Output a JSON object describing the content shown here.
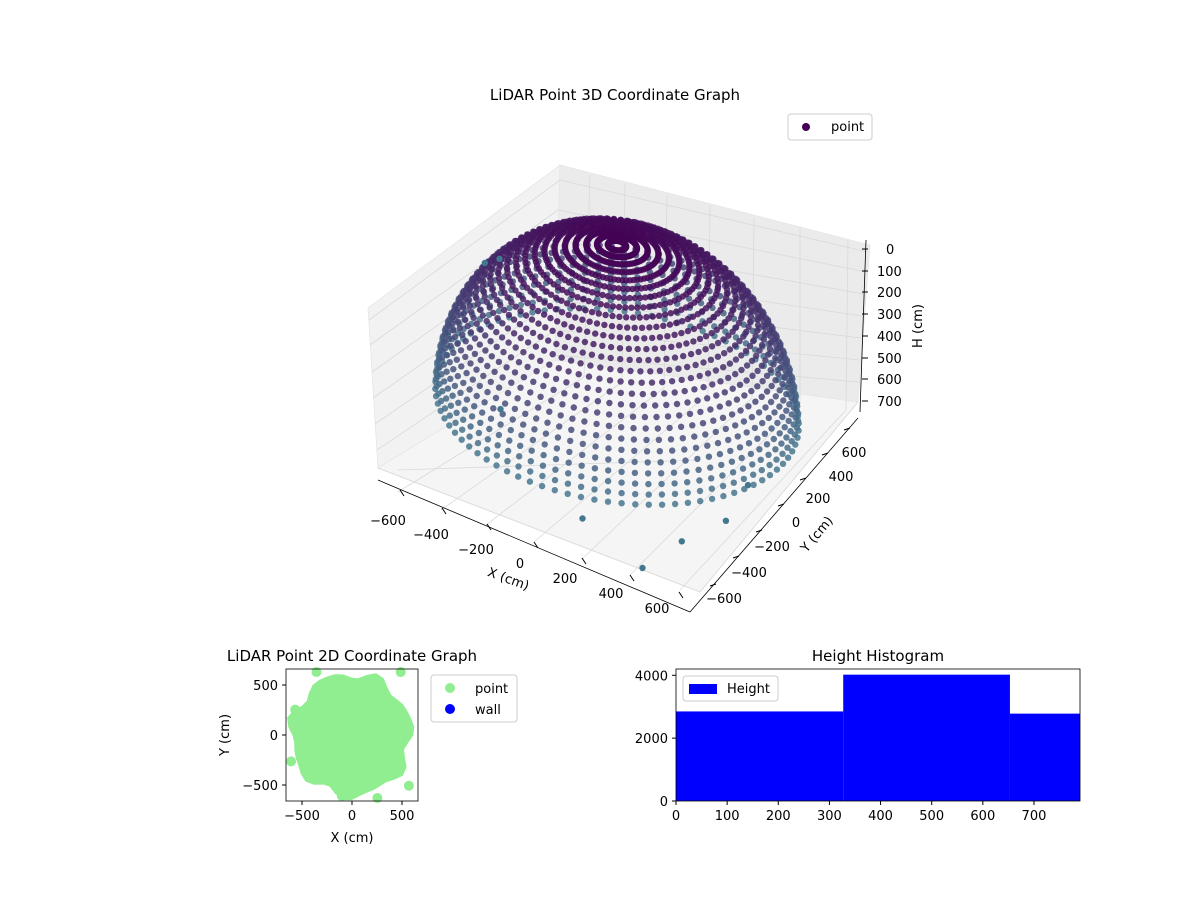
{
  "chart_data": [
    {
      "type": "scatter",
      "projection": "3d",
      "title": "LiDAR Point 3D Coordinate Graph",
      "xlabel": "X (cm)",
      "ylabel": "Y (cm)",
      "zlabel": "H (cm)",
      "xticks": [
        "−600",
        "−400",
        "−200",
        "0",
        "200",
        "400",
        "600"
      ],
      "yticks": [
        "600",
        "400",
        "200",
        "0",
        "−200",
        "−400",
        "−600"
      ],
      "zticks": [
        "0",
        "100",
        "200",
        "300",
        "400",
        "500",
        "600",
        "700"
      ],
      "xlim": [
        -650,
        650
      ],
      "ylim": [
        -650,
        650
      ],
      "zlim": [
        0,
        780
      ],
      "z_axis_inverted": true,
      "colormap": "viridis (purple to teal)",
      "grid": true,
      "legend": {
        "placement": "top-right",
        "entries": [
          {
            "label": "point",
            "color": "#440154"
          }
        ]
      },
      "series": [
        {
          "name": "point",
          "description_of_shape": "hemispherical bowl of points, radius ~650, depth ~780"
        }
      ]
    },
    {
      "type": "scatter",
      "title": "LiDAR Point 2D Coordinate Graph",
      "xlabel": "X (cm)",
      "ylabel": "Y (cm)",
      "xticks": [
        "−500",
        "0",
        "500"
      ],
      "yticks": [
        "500",
        "0",
        "−500"
      ],
      "xlim": [
        -650,
        650
      ],
      "ylim": [
        -650,
        650
      ],
      "grid": false,
      "legend": {
        "placement": "outside-right",
        "entries": [
          {
            "label": "point",
            "color": "#90ee90"
          },
          {
            "label": "wall",
            "color": "#0000ff"
          }
        ]
      },
      "series": [
        {
          "name": "point",
          "color": "#90ee90",
          "extent": {
            "x": [
              -640,
              620
            ],
            "y": [
              -640,
              640
            ]
          }
        },
        {
          "name": "wall",
          "color": "#0000ff",
          "values": []
        }
      ]
    },
    {
      "type": "bar",
      "title": "Height Histogram",
      "xticks": [
        "0",
        "100",
        "200",
        "300",
        "400",
        "500",
        "600",
        "700"
      ],
      "yticks": [
        "0",
        "2000",
        "4000"
      ],
      "xlim": [
        0,
        790
      ],
      "ylim": [
        0,
        4200
      ],
      "legend": {
        "placement": "top-left",
        "entries": [
          {
            "label": "Height",
            "color": "#0000ff"
          }
        ]
      },
      "color": "#0000ff",
      "bins": [
        {
          "x0": 0,
          "x1": 327,
          "value": 2850
        },
        {
          "x0": 327,
          "x1": 653,
          "value": 4020
        },
        {
          "x0": 653,
          "x1": 790,
          "value": 2780
        }
      ]
    }
  ]
}
